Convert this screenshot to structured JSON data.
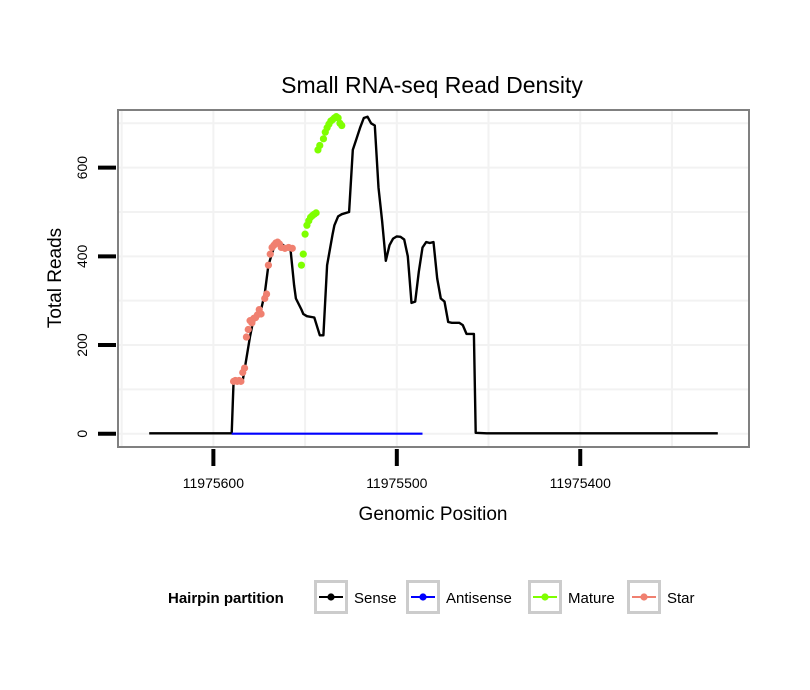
{
  "chart_data": {
    "type": "line",
    "title": "Small RNA-seq Read Density",
    "xlabel": "Genomic Position",
    "ylabel": "Total Reads",
    "x_reversed": true,
    "xlim": [
      11975652,
      11975308
    ],
    "ylim": [
      -30,
      730
    ],
    "x_ticks": [
      11975600,
      11975500,
      11975400
    ],
    "x_tick_labels": [
      "11975600",
      "11975500",
      "11975400"
    ],
    "y_ticks": [
      0,
      200,
      400,
      600
    ],
    "y_tick_labels": [
      "0",
      "200",
      "400",
      "600"
    ],
    "legend": {
      "title": "Hairpin partition",
      "position": "bottom",
      "entries": [
        {
          "name": "Sense",
          "color": "#000000"
        },
        {
          "name": "Antisense",
          "color": "#0000ff"
        },
        {
          "name": "Mature",
          "color": "#7fff00"
        },
        {
          "name": "Star",
          "color": "#f08070"
        }
      ]
    },
    "series": [
      {
        "name": "Sense",
        "color": "#000000",
        "x": [
          11975635,
          11975590,
          11975589,
          11975586,
          11975584,
          11975583,
          11975580,
          11975578,
          11975576,
          11975574,
          11975572,
          11975570,
          11975567,
          11975564,
          11975562,
          11975560,
          11975558,
          11975556,
          11975555,
          11975552,
          11975551,
          11975549,
          11975545,
          11975542,
          11975540,
          11975538,
          11975535,
          11975534,
          11975532,
          11975530,
          11975526,
          11975524,
          11975522,
          11975520,
          11975518,
          11975516,
          11975514,
          11975512,
          11975510,
          11975508,
          11975506,
          11975504,
          11975502,
          11975500,
          11975498,
          11975496,
          11975494,
          11975492,
          11975490,
          11975488,
          11975486,
          11975484,
          11975482,
          11975480,
          11975478,
          11975476,
          11975474,
          11975472,
          11975470,
          11975468,
          11975466,
          11975464,
          11975462,
          11975460,
          11975458,
          11975457,
          11975451,
          11975400,
          11975325
        ],
        "y": [
          1,
          1,
          120,
          120,
          120,
          145,
          220,
          260,
          268,
          280,
          315,
          380,
          420,
          432,
          425,
          420,
          418,
          335,
          305,
          280,
          270,
          265,
          262,
          222,
          222,
          380,
          450,
          470,
          490,
          495,
          500,
          640,
          665,
          690,
          712,
          715,
          700,
          695,
          555,
          480,
          390,
          425,
          440,
          445,
          444,
          438,
          400,
          295,
          298,
          365,
          420,
          432,
          430,
          432,
          350,
          305,
          298,
          252,
          250,
          250,
          250,
          245,
          225,
          225,
          225,
          2,
          1,
          1,
          1
        ]
      },
      {
        "name": "Antisense",
        "color": "#0000ff",
        "x": [
          11975590,
          11975486
        ],
        "y": [
          0,
          0
        ]
      },
      {
        "name": "Mature",
        "color": "#7fff00",
        "x": [
          11975552,
          11975551,
          11975550,
          11975549,
          11975548,
          11975547,
          11975546,
          11975545,
          11975544,
          11975543,
          11975542,
          11975540,
          11975539,
          11975538,
          11975537,
          11975536,
          11975535,
          11975534,
          11975533,
          11975532,
          11975531,
          11975530
        ],
        "y": [
          380,
          405,
          450,
          470,
          480,
          488,
          492,
          495,
          498,
          640,
          650,
          665,
          680,
          690,
          698,
          705,
          708,
          712,
          715,
          712,
          700,
          695
        ]
      },
      {
        "name": "Star",
        "color": "#f08070",
        "x": [
          11975589,
          11975588,
          11975587,
          11975586,
          11975585,
          11975584,
          11975583,
          11975582,
          11975581,
          11975580,
          11975579,
          11975578,
          11975577,
          11975576,
          11975575,
          11975574,
          11975572,
          11975571,
          11975570,
          11975569,
          11975568,
          11975567,
          11975566,
          11975565,
          11975564,
          11975563,
          11975561,
          11975559,
          11975557
        ],
        "y": [
          118,
          120,
          118,
          120,
          118,
          138,
          148,
          218,
          235,
          255,
          250,
          260,
          262,
          268,
          280,
          270,
          305,
          315,
          380,
          405,
          420,
          425,
          430,
          432,
          428,
          420,
          418,
          420,
          418
        ]
      }
    ]
  }
}
